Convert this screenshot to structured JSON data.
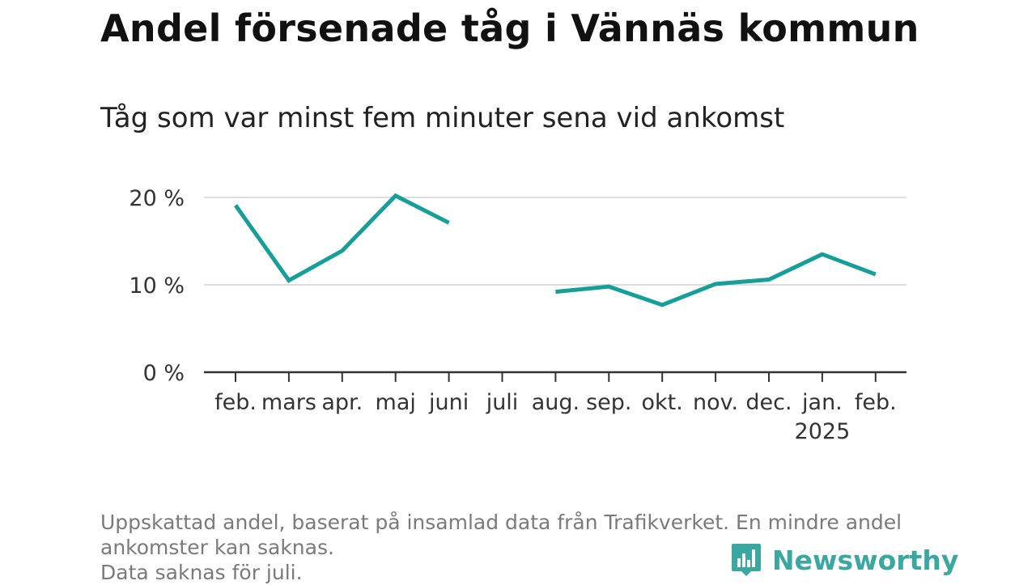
{
  "title": "Andel försenade tåg i Vännäs kommun",
  "subtitle": "Tåg som var minst fem minuter sena vid ankomst",
  "footnote": {
    "line1": "Uppskattad andel, baserat på insamlad data från Trafikverket. En mindre andel",
    "line2": "ankomster kan saknas.",
    "line3": "Data saknas för juli."
  },
  "brand": {
    "name": "Newsworthy",
    "icon": "newsworthy-logo-icon",
    "color": "#3aa8a0"
  },
  "chart_data": {
    "type": "line",
    "categories": [
      "feb.",
      "mars",
      "apr.",
      "maj",
      "juni",
      "juli",
      "aug.",
      "sep.",
      "okt.",
      "nov.",
      "dec.",
      "jan.",
      "feb."
    ],
    "year_labels": {
      "11": "2025"
    },
    "series": [
      {
        "values": [
          19.1,
          10.5,
          13.9,
          20.2,
          17.1,
          null,
          9.2,
          9.8,
          7.7,
          10.1,
          10.6,
          13.5,
          11.2
        ],
        "color": "#159f99"
      }
    ],
    "y_ticks": [
      0,
      10,
      20
    ],
    "y_tick_labels": [
      "0 %",
      "10 %",
      "20 %"
    ],
    "ylim": [
      0,
      20
    ],
    "xlabel": "",
    "ylabel": "",
    "grid": true
  }
}
